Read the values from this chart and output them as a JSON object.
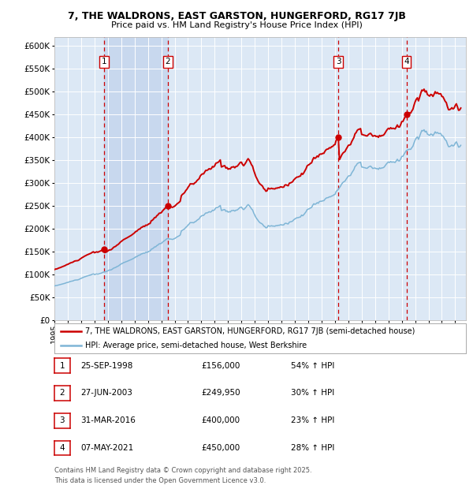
{
  "title": "7, THE WALDRONS, EAST GARSTON, HUNGERFORD, RG17 7JB",
  "subtitle": "Price paid vs. HM Land Registry's House Price Index (HPI)",
  "background_color": "#ffffff",
  "plot_bg_color": "#dce8f5",
  "grid_color": "#ffffff",
  "red_line_color": "#cc0000",
  "blue_line_color": "#7eb5d6",
  "sale_marker_color": "#cc0000",
  "dashed_line_color": "#cc0000",
  "shade_color": "#c8d8ee",
  "legend_label_red": "7, THE WALDRONS, EAST GARSTON, HUNGERFORD, RG17 7JB (semi-detached house)",
  "legend_label_blue": "HPI: Average price, semi-detached house, West Berkshire",
  "footer_line1": "Contains HM Land Registry data © Crown copyright and database right 2025.",
  "footer_line2": "This data is licensed under the Open Government Licence v3.0.",
  "sales": [
    {
      "num": 1,
      "date": "25-SEP-1998",
      "price": 156000,
      "pct": "54%",
      "x_year": 1998.73
    },
    {
      "num": 2,
      "date": "27-JUN-2003",
      "price": 249950,
      "pct": "30%",
      "x_year": 2003.49
    },
    {
      "num": 3,
      "date": "31-MAR-2016",
      "price": 400000,
      "pct": "23%",
      "x_year": 2016.25
    },
    {
      "num": 4,
      "date": "07-MAY-2021",
      "price": 450000,
      "pct": "28%",
      "x_year": 2021.35
    }
  ],
  "ylim": [
    0,
    620000
  ],
  "yticks": [
    0,
    50000,
    100000,
    150000,
    200000,
    250000,
    300000,
    350000,
    400000,
    450000,
    500000,
    550000,
    600000
  ],
  "xlim_start": 1995.0,
  "xlim_end": 2025.8
}
